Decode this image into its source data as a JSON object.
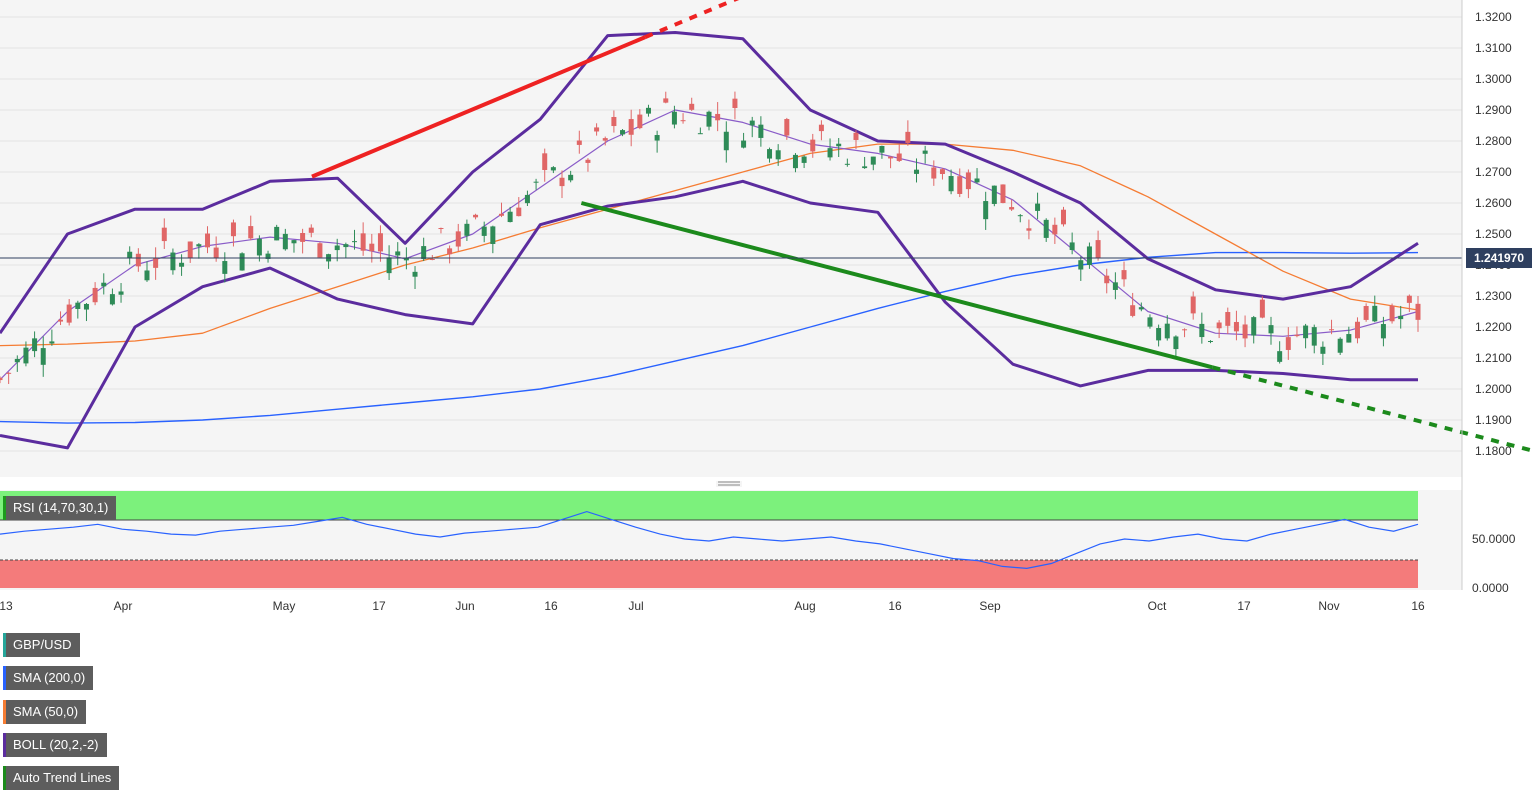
{
  "chart_data": {
    "type": "candlestick",
    "symbol": "GBP/USD",
    "current_price": "1.241970",
    "legend": [
      {
        "label": "GBP/USD",
        "color": "#26a69a"
      },
      {
        "label": "SMA (200,0)",
        "color": "#2962ff"
      },
      {
        "label": "SMA (50,0)",
        "color": "#f57c33"
      },
      {
        "label": "BOLL (20,2,-2)",
        "color": "#5b2c9e"
      },
      {
        "label": "Auto Trend Lines",
        "color": "#1c8a1c"
      }
    ],
    "y_axis": {
      "range": [
        1.175,
        1.323
      ],
      "ticks": [
        "1.3200",
        "1.3100",
        "1.3000",
        "1.2900",
        "1.2800",
        "1.2700",
        "1.2600",
        "1.2500",
        "1.2400",
        "1.2300",
        "1.2200",
        "1.2100",
        "1.2000",
        "1.1900",
        "1.1800"
      ]
    },
    "x_axis": {
      "labels": [
        "13",
        "Apr",
        "May",
        "17",
        "Jun",
        "16",
        "Jul",
        "Aug",
        "16",
        "Sep",
        "Oct",
        "17",
        "Nov",
        "16"
      ]
    },
    "sma200": [
      1.1895,
      1.189,
      1.1892,
      1.19,
      1.1915,
      1.1935,
      1.1955,
      1.1975,
      1.2,
      1.204,
      1.209,
      1.214,
      1.22,
      1.226,
      1.2315,
      1.2365,
      1.24,
      1.2425,
      1.244,
      1.244,
      1.2438,
      1.244
    ],
    "sma50": [
      1.214,
      1.2145,
      1.2155,
      1.218,
      1.226,
      1.233,
      1.24,
      1.2455,
      1.252,
      1.258,
      1.264,
      1.27,
      1.276,
      1.279,
      1.279,
      1.277,
      1.272,
      1.262,
      1.25,
      1.238,
      1.229,
      1.2255
    ],
    "boll_upper": [
      1.218,
      1.25,
      1.258,
      1.258,
      1.267,
      1.268,
      1.247,
      1.27,
      1.287,
      1.314,
      1.315,
      1.313,
      1.29,
      1.28,
      1.279,
      1.27,
      1.26,
      1.242,
      1.232,
      1.229,
      1.233,
      1.247
    ],
    "boll_mid": [
      1.203,
      1.225,
      1.24,
      1.246,
      1.249,
      1.247,
      1.242,
      1.25,
      1.265,
      1.28,
      1.29,
      1.286,
      1.279,
      1.276,
      1.271,
      1.261,
      1.243,
      1.225,
      1.218,
      1.217,
      1.219,
      1.225
    ],
    "boll_lower": [
      1.185,
      1.181,
      1.22,
      1.233,
      1.239,
      1.229,
      1.224,
      1.221,
      1.253,
      1.259,
      1.262,
      1.267,
      1.26,
      1.257,
      1.228,
      1.208,
      1.201,
      1.206,
      1.206,
      1.205,
      1.203,
      1.203
    ],
    "trend_lines": [
      {
        "type": "resistance",
        "color": "#ee2222",
        "from": [
          0.22,
          1.2685
        ],
        "to": [
          0.455,
          1.3135
        ]
      },
      {
        "type": "support",
        "color": "#1c8a1c",
        "from": [
          0.41,
          1.26
        ],
        "to": [
          0.855,
          1.207
        ]
      }
    ],
    "rsi": {
      "label": "RSI (14,70,30,1)",
      "overbought": 70,
      "oversold": 30,
      "y_ticks": [
        "50.0000",
        "0.0000"
      ],
      "values": [
        55,
        58,
        60,
        62,
        65,
        60,
        58,
        55,
        54,
        58,
        60,
        62,
        64,
        68,
        72,
        65,
        60,
        55,
        52,
        56,
        58,
        60,
        62,
        70,
        78,
        70,
        62,
        55,
        50,
        48,
        52,
        50,
        48,
        50,
        52,
        48,
        45,
        40,
        35,
        30,
        28,
        22,
        20,
        25,
        35,
        45,
        50,
        48,
        52,
        55,
        50,
        48,
        55,
        60,
        65,
        70,
        62,
        58,
        65
      ]
    }
  }
}
